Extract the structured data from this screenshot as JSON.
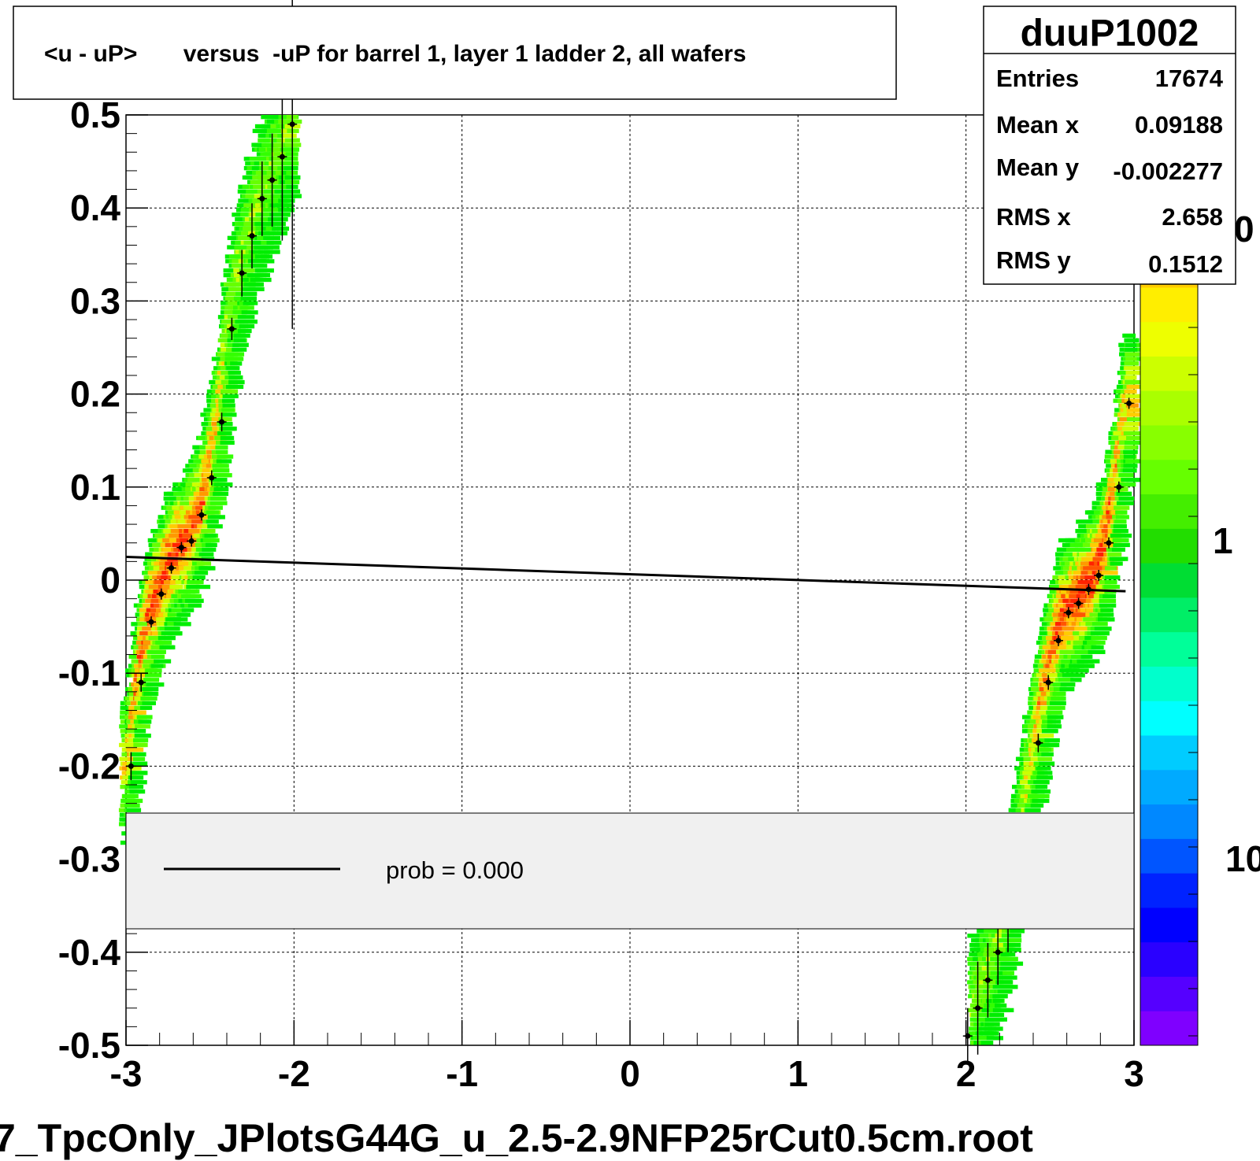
{
  "title": "<u - uP>       versus  -uP for barrel 1, layer 1 ladder 2, all wafers",
  "footer_text": "7_TpcOnly_JPlotsG44G_u_2.5-2.9NFP25rCut0.5cm.root",
  "stats": {
    "name": "duuP1002",
    "rows": [
      {
        "label": "Entries",
        "value": "17674"
      },
      {
        "label": "Mean x",
        "value": "0.09188"
      },
      {
        "label": "Mean y",
        "value": "-0.002277"
      },
      {
        "label": "RMS x",
        "value": "2.658"
      },
      {
        "label": "RMS y",
        "value": "0.1512"
      }
    ]
  },
  "legend": {
    "text": "prob = 0.000"
  },
  "colorbar_labels": [
    "0",
    "1",
    "10"
  ],
  "chart_data": {
    "type": "heatmap",
    "title": "<u - uP>       versus  -uP for barrel 1, layer 1 ladder 2, all wafers",
    "xlim": [
      -3,
      3
    ],
    "ylim": [
      -0.5,
      0.5
    ],
    "x_ticks": [
      "-3",
      "-2",
      "-1",
      "0",
      "1",
      "2",
      "3"
    ],
    "y_ticks": [
      "-0.5",
      "-0.4",
      "-0.3",
      "-0.2",
      "-0.1",
      "0",
      "0.1",
      "0.2",
      "0.3",
      "0.4",
      "0.5"
    ],
    "grid": true,
    "fit_line": {
      "x": [
        -3,
        2.95
      ],
      "y": [
        0.025,
        -0.012
      ]
    },
    "bands": [
      {
        "x_start": -3.0,
        "x_end": -2.0,
        "y_start": -0.29,
        "y_end": 0.5
      },
      {
        "x_start": 2.05,
        "x_end": 3.0,
        "y_start": -0.5,
        "y_end": 0.3
      }
    ],
    "profile_points": [
      {
        "x": -2.97,
        "y": -0.2,
        "err": 0.015
      },
      {
        "x": -2.91,
        "y": -0.11,
        "err": 0.01
      },
      {
        "x": -2.85,
        "y": -0.045,
        "err": 0.006
      },
      {
        "x": -2.79,
        "y": -0.015,
        "err": 0.006
      },
      {
        "x": -2.73,
        "y": 0.013,
        "err": 0.006
      },
      {
        "x": -2.67,
        "y": 0.035,
        "err": 0.006
      },
      {
        "x": -2.61,
        "y": 0.042,
        "err": 0.006
      },
      {
        "x": -2.55,
        "y": 0.07,
        "err": 0.006
      },
      {
        "x": -2.49,
        "y": 0.11,
        "err": 0.008
      },
      {
        "x": -2.43,
        "y": 0.17,
        "err": 0.01
      },
      {
        "x": -2.37,
        "y": 0.27,
        "err": 0.012
      },
      {
        "x": -2.31,
        "y": 0.33,
        "err": 0.025
      },
      {
        "x": -2.25,
        "y": 0.37,
        "err": 0.035
      },
      {
        "x": -2.19,
        "y": 0.41,
        "err": 0.04
      },
      {
        "x": -2.13,
        "y": 0.43,
        "err": 0.05
      },
      {
        "x": -2.07,
        "y": 0.455,
        "err": 0.09
      },
      {
        "x": -2.01,
        "y": 0.49,
        "err": 0.22
      },
      {
        "x": 2.01,
        "y": -0.49,
        "err": 0.03
      },
      {
        "x": 2.07,
        "y": -0.46,
        "err": 0.05
      },
      {
        "x": 2.13,
        "y": -0.43,
        "err": 0.04
      },
      {
        "x": 2.19,
        "y": -0.4,
        "err": 0.035
      },
      {
        "x": 2.25,
        "y": -0.37,
        "err": 0.03
      },
      {
        "x": 2.43,
        "y": -0.175,
        "err": 0.01
      },
      {
        "x": 2.49,
        "y": -0.11,
        "err": 0.008
      },
      {
        "x": 2.55,
        "y": -0.065,
        "err": 0.006
      },
      {
        "x": 2.61,
        "y": -0.035,
        "err": 0.006
      },
      {
        "x": 2.67,
        "y": -0.025,
        "err": 0.006
      },
      {
        "x": 2.73,
        "y": -0.01,
        "err": 0.006
      },
      {
        "x": 2.79,
        "y": 0.005,
        "err": 0.006
      },
      {
        "x": 2.85,
        "y": 0.04,
        "err": 0.006
      },
      {
        "x": 2.91,
        "y": 0.1,
        "err": 0.006
      },
      {
        "x": 2.97,
        "y": 0.19,
        "err": 0.006
      }
    ]
  }
}
